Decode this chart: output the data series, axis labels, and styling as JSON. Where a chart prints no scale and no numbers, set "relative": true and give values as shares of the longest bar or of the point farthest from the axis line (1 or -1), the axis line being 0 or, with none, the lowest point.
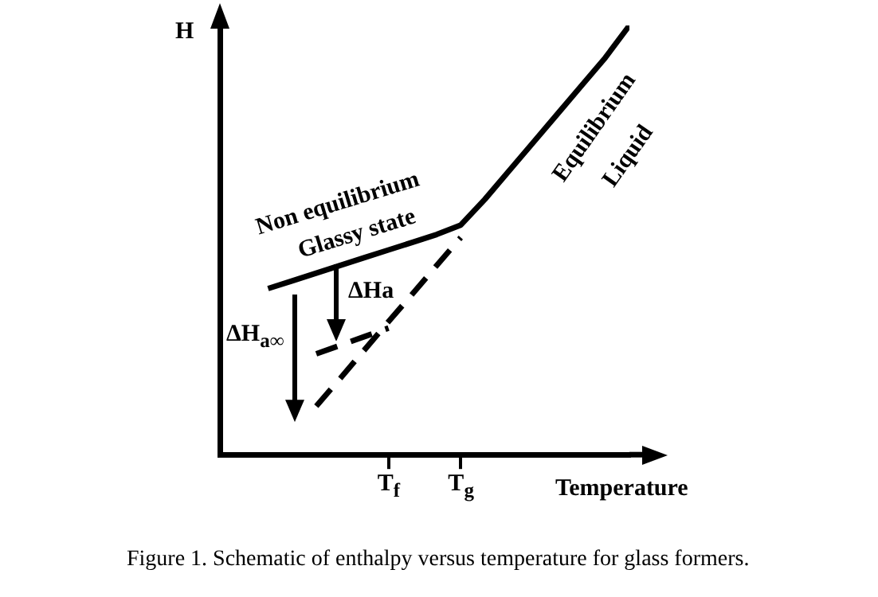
{
  "chart_data": {
    "type": "line",
    "relative": true,
    "xlabel": "Temperature",
    "ylabel": "H",
    "categories": [
      null,
      null,
      null,
      null,
      null,
      null,
      null,
      "T$_{f}$",
      null,
      null,
      "T$_{g}$",
      null,
      null,
      null,
      null,
      null,
      null,
      null
    ],
    "series": [
      {
        "color": "#000000",
        "line_style": "solid",
        "values": [
          null,
          null,
          0.387,
          0.405,
          0.423,
          0.441,
          0.459,
          0.477,
          0.495,
          0.513,
          0.535,
          0.595,
          0.661,
          0.727,
          0.793,
          0.859,
          0.925,
          1.0
        ]
      },
      {
        "color": "#000000",
        "line_style": "dashed",
        "values": [
          null,
          null,
          null,
          null,
          0.113,
          0.178,
          0.244,
          0.31,
          0.375,
          0.441,
          0.506,
          null,
          null,
          null,
          null,
          null,
          null,
          null
        ]
      },
      {
        "color": "#000000",
        "line_style": "dashed",
        "values": [
          null,
          null,
          null,
          null,
          0.235,
          0.255,
          0.275,
          0.295,
          null,
          null,
          null,
          null,
          null,
          null,
          null,
          null,
          null,
          null
        ]
      }
    ],
    "annotations": [
      "Non equilibrium",
      "Glassy state",
      "Equilibrium",
      "Liquid",
      "ΔHa",
      "ΔH$_{a∞}$",
      "Figure 1.  Schematic of enthalpy versus temperature for glass formers."
    ],
    "legend": false,
    "grid": false
  }
}
